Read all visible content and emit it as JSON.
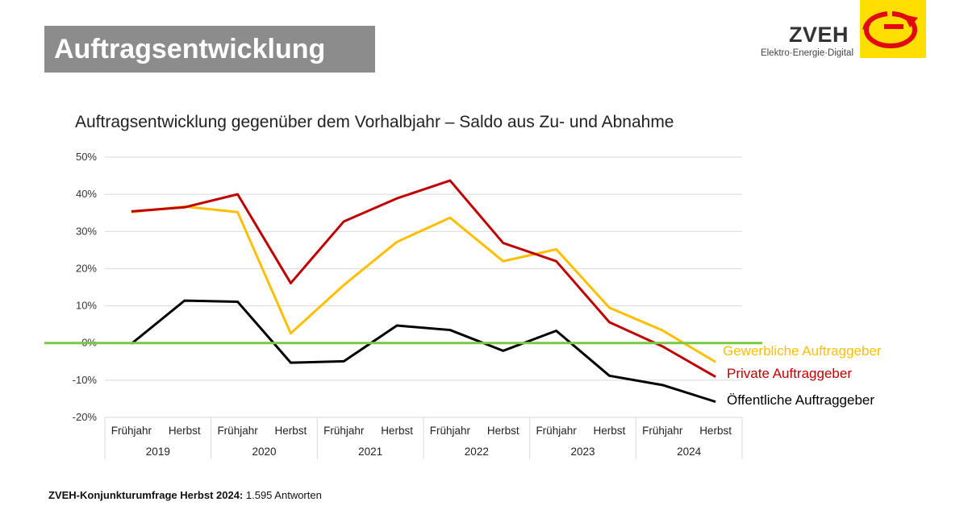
{
  "header": {
    "title": "Auftragsentwicklung"
  },
  "logo": {
    "name": "ZVEH",
    "subtitle": "Elektro·Energie·Digital",
    "icon": "zveh-logo-icon"
  },
  "footer": {
    "bold": "ZVEH-Konjunkturumfrage Herbst 2024:",
    "text": " 1.595 Antworten"
  },
  "colors": {
    "gewerbliche": "#ffbf00",
    "private": "#c00000",
    "oeffentliche": "#000000",
    "zero_line": "#7ac943",
    "grid": "#d9d9d9"
  },
  "chart_data": {
    "type": "line",
    "title": "Auftragsentwicklung gegenüber dem Vorhalbjahr – Saldo aus Zu- und Abnahme",
    "y_ticks": [
      "50%",
      "40%",
      "30%",
      "20%",
      "10%",
      "0%",
      "-10%",
      "-20%"
    ],
    "ylim": [
      -20,
      50
    ],
    "x": [
      "Frühjahr",
      "Herbst",
      "Frühjahr",
      "Herbst",
      "Frühjahr",
      "Herbst",
      "Frühjahr",
      "Herbst",
      "Frühjahr",
      "Herbst",
      "Frühjahr",
      "Herbst"
    ],
    "years": [
      "2019",
      "2020",
      "2021",
      "2022",
      "2023",
      "2024"
    ],
    "grid": true,
    "reference_line_y": 0,
    "series": [
      {
        "name": "Gewerbliche Auftraggeber",
        "color": "#ffbf00",
        "values": [
          35.2,
          36.7,
          35.2,
          2.6,
          15.6,
          27.2,
          33.7,
          22.0,
          25.2,
          9.5,
          3.4,
          -5.1
        ]
      },
      {
        "name": "Private Auftraggeber",
        "color": "#c00000",
        "values": [
          35.4,
          36.5,
          40.0,
          16.1,
          32.7,
          38.9,
          43.7,
          26.9,
          22.0,
          5.6,
          -0.9,
          -9.1
        ]
      },
      {
        "name": "Öffentliche Auftraggeber",
        "color": "#000000",
        "values": [
          -0.2,
          11.4,
          11.1,
          -5.3,
          -4.9,
          4.7,
          3.5,
          -2.1,
          3.3,
          -8.8,
          -11.3,
          -15.8
        ]
      }
    ]
  }
}
